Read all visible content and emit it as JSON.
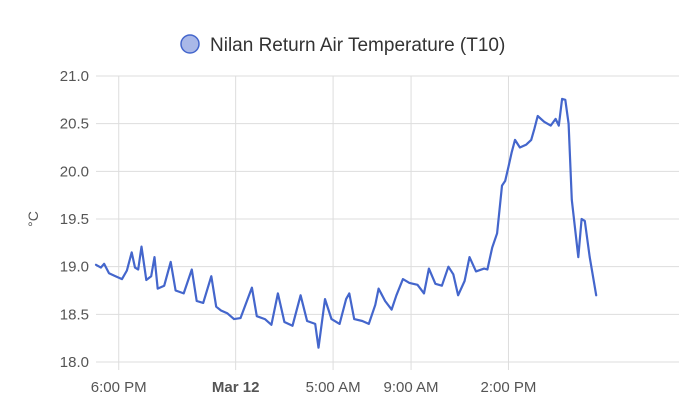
{
  "chart_data": {
    "type": "line",
    "title": "",
    "legend_position": "top-center",
    "grid": true,
    "xlabel": "",
    "ylabel": "°C",
    "ylim": [
      18.0,
      21.0
    ],
    "yticks": [
      "18.0",
      "18.5",
      "19.0",
      "19.5",
      "20.0",
      "20.5",
      "21.0"
    ],
    "x_range": [
      "Mar 11 16:50",
      "Mar 12 22:45"
    ],
    "xticks": [
      {
        "t": "Mar 11 18:00",
        "label": "6:00 PM",
        "bold": false
      },
      {
        "t": "Mar 12 00:00",
        "label": "Mar 12",
        "bold": true
      },
      {
        "t": "Mar 12 05:00",
        "label": "5:00 AM",
        "bold": false
      },
      {
        "t": "Mar 12 09:00",
        "label": "9:00 AM",
        "bold": false
      },
      {
        "t": "Mar 12 14:00",
        "label": "2:00 PM",
        "bold": false
      }
    ],
    "series": [
      {
        "name": "Nilan Return Air Temperature (T10)",
        "color": "#4466cc",
        "legend_fill": "#a9b8e8",
        "points": [
          [
            "Mar 11 16:50",
            19.02
          ],
          [
            "Mar 11 17:05",
            18.99
          ],
          [
            "Mar 11 17:15",
            19.03
          ],
          [
            "Mar 11 17:30",
            18.93
          ],
          [
            "Mar 11 17:50",
            18.9
          ],
          [
            "Mar 11 18:10",
            18.87
          ],
          [
            "Mar 11 18:25",
            18.96
          ],
          [
            "Mar 11 18:40",
            19.15
          ],
          [
            "Mar 11 18:50",
            18.99
          ],
          [
            "Mar 11 19:00",
            18.97
          ],
          [
            "Mar 11 19:10",
            19.21
          ],
          [
            "Mar 11 19:25",
            18.86
          ],
          [
            "Mar 11 19:40",
            18.9
          ],
          [
            "Mar 11 19:50",
            19.1
          ],
          [
            "Mar 11 20:00",
            18.77
          ],
          [
            "Mar 11 20:20",
            18.8
          ],
          [
            "Mar 11 20:40",
            19.05
          ],
          [
            "Mar 11 20:55",
            18.75
          ],
          [
            "Mar 11 21:20",
            18.72
          ],
          [
            "Mar 11 21:45",
            18.97
          ],
          [
            "Mar 11 22:00",
            18.64
          ],
          [
            "Mar 11 22:20",
            18.62
          ],
          [
            "Mar 11 22:45",
            18.9
          ],
          [
            "Mar 11 23:00",
            18.58
          ],
          [
            "Mar 11 23:15",
            18.54
          ],
          [
            "Mar 11 23:35",
            18.51
          ],
          [
            "Mar 11 23:55",
            18.45
          ],
          [
            "Mar 12 00:15",
            18.46
          ],
          [
            "Mar 12 00:50",
            18.78
          ],
          [
            "Mar 12 01:05",
            18.48
          ],
          [
            "Mar 12 01:30",
            18.45
          ],
          [
            "Mar 12 01:50",
            18.39
          ],
          [
            "Mar 12 02:10",
            18.72
          ],
          [
            "Mar 12 02:30",
            18.42
          ],
          [
            "Mar 12 02:55",
            18.38
          ],
          [
            "Mar 12 03:20",
            18.7
          ],
          [
            "Mar 12 03:40",
            18.43
          ],
          [
            "Mar 12 04:05",
            18.4
          ],
          [
            "Mar 12 04:15",
            18.15
          ],
          [
            "Mar 12 04:35",
            18.66
          ],
          [
            "Mar 12 04:55",
            18.45
          ],
          [
            "Mar 12 05:20",
            18.4
          ],
          [
            "Mar 12 05:40",
            18.66
          ],
          [
            "Mar 12 05:50",
            18.72
          ],
          [
            "Mar 12 06:05",
            18.45
          ],
          [
            "Mar 12 06:30",
            18.43
          ],
          [
            "Mar 12 06:50",
            18.4
          ],
          [
            "Mar 12 07:10",
            18.6
          ],
          [
            "Mar 12 07:20",
            18.77
          ],
          [
            "Mar 12 07:40",
            18.64
          ],
          [
            "Mar 12 08:00",
            18.55
          ],
          [
            "Mar 12 08:15",
            18.7
          ],
          [
            "Mar 12 08:35",
            18.87
          ],
          [
            "Mar 12 08:55",
            18.83
          ],
          [
            "Mar 12 09:20",
            18.81
          ],
          [
            "Mar 12 09:40",
            18.72
          ],
          [
            "Mar 12 09:55",
            18.98
          ],
          [
            "Mar 12 10:15",
            18.82
          ],
          [
            "Mar 12 10:35",
            18.8
          ],
          [
            "Mar 12 10:55",
            19.0
          ],
          [
            "Mar 12 11:10",
            18.92
          ],
          [
            "Mar 12 11:25",
            18.7
          ],
          [
            "Mar 12 11:45",
            18.85
          ],
          [
            "Mar 12 12:00",
            19.1
          ],
          [
            "Mar 12 12:20",
            18.95
          ],
          [
            "Mar 12 12:45",
            18.98
          ],
          [
            "Mar 12 12:55",
            18.97
          ],
          [
            "Mar 12 13:10",
            19.2
          ],
          [
            "Mar 12 13:25",
            19.35
          ],
          [
            "Mar 12 13:40",
            19.85
          ],
          [
            "Mar 12 13:50",
            19.9
          ],
          [
            "Mar 12 14:00",
            20.05
          ],
          [
            "Mar 12 14:10",
            20.2
          ],
          [
            "Mar 12 14:20",
            20.33
          ],
          [
            "Mar 12 14:35",
            20.25
          ],
          [
            "Mar 12 14:55",
            20.28
          ],
          [
            "Mar 12 15:10",
            20.33
          ],
          [
            "Mar 12 15:20",
            20.45
          ],
          [
            "Mar 12 15:30",
            20.58
          ],
          [
            "Mar 12 15:50",
            20.52
          ],
          [
            "Mar 12 16:10",
            20.48
          ],
          [
            "Mar 12 16:25",
            20.55
          ],
          [
            "Mar 12 16:35",
            20.48
          ],
          [
            "Mar 12 16:45",
            20.76
          ],
          [
            "Mar 12 16:55",
            20.75
          ],
          [
            "Mar 12 17:05",
            20.5
          ],
          [
            "Mar 12 17:15",
            19.7
          ],
          [
            "Mar 12 17:35",
            19.1
          ],
          [
            "Mar 12 17:45",
            19.5
          ],
          [
            "Mar 12 17:55",
            19.48
          ],
          [
            "Mar 12 18:10",
            19.1
          ],
          [
            "Mar 12 18:30",
            18.7
          ]
        ]
      }
    ]
  }
}
